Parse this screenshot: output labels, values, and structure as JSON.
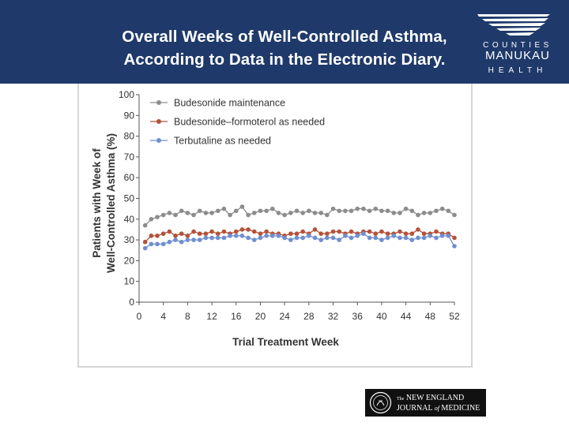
{
  "slide": {
    "title_line1": "Overall Weeks of Well-Controlled Asthma,",
    "title_line2": "According to Data in the Electronic Diary.",
    "colors": {
      "header_bg": "#1f3a6a",
      "text_light": "#ffffff"
    }
  },
  "logo": {
    "line1": "COUNTIES",
    "line2": "MANUKAU",
    "line3": "HEALTH"
  },
  "journal": {
    "the": "The",
    "name_line1": "NEW ENGLAND",
    "journal_word": "JOURNAL",
    "of_word": "of",
    "medicine_word": "MEDICINE"
  },
  "chart_data": {
    "type": "line",
    "title": "",
    "xlabel": "Trial Treatment Week",
    "ylabel_line1": "Patients with Week of",
    "ylabel_line2": "Well-Controlled Asthma (%)",
    "xlim": [
      0,
      52
    ],
    "ylim": [
      0,
      100
    ],
    "xticks": [
      0,
      4,
      8,
      12,
      16,
      20,
      24,
      28,
      32,
      36,
      40,
      44,
      48,
      52
    ],
    "yticks": [
      0,
      10,
      20,
      30,
      40,
      50,
      60,
      70,
      80,
      90,
      100
    ],
    "legend_position": "top-left",
    "grid": false,
    "x": [
      1,
      2,
      3,
      4,
      5,
      6,
      7,
      8,
      9,
      10,
      11,
      12,
      13,
      14,
      15,
      16,
      17,
      18,
      19,
      20,
      21,
      22,
      23,
      24,
      25,
      26,
      27,
      28,
      29,
      30,
      31,
      32,
      33,
      34,
      35,
      36,
      37,
      38,
      39,
      40,
      41,
      42,
      43,
      44,
      45,
      46,
      47,
      48,
      49,
      50,
      51,
      52
    ],
    "series": [
      {
        "name": "Budesonide maintenance",
        "color": "#8c8c8c",
        "values": [
          37,
          40,
          41,
          42,
          43,
          42,
          44,
          43,
          42,
          44,
          43,
          43,
          44,
          45,
          42,
          44,
          46,
          42,
          43,
          44,
          44,
          45,
          43,
          42,
          43,
          44,
          43,
          44,
          43,
          43,
          42,
          45,
          44,
          44,
          44,
          45,
          45,
          44,
          45,
          44,
          44,
          43,
          43,
          45,
          44,
          42,
          43,
          43,
          44,
          45,
          44,
          42
        ]
      },
      {
        "name": "Budesonide–formoterol as needed",
        "color": "#b4523a",
        "values": [
          29,
          32,
          32,
          33,
          34,
          32,
          33,
          32,
          34,
          33,
          33,
          34,
          33,
          34,
          33,
          34,
          35,
          35,
          34,
          33,
          34,
          33,
          33,
          32,
          33,
          33,
          34,
          33,
          35,
          33,
          33,
          34,
          34,
          33,
          34,
          33,
          34,
          34,
          33,
          34,
          33,
          33,
          34,
          33,
          33,
          35,
          33,
          33,
          34,
          33,
          33,
          31
        ]
      },
      {
        "name": "Terbutaline as needed",
        "color": "#6f8fd0",
        "values": [
          26,
          28,
          28,
          28,
          29,
          30,
          29,
          30,
          30,
          30,
          31,
          31,
          31,
          31,
          32,
          32,
          32,
          31,
          30,
          31,
          32,
          32,
          32,
          31,
          30,
          31,
          31,
          32,
          31,
          30,
          31,
          31,
          30,
          32,
          31,
          32,
          33,
          31,
          31,
          30,
          31,
          32,
          31,
          31,
          30,
          31,
          31,
          32,
          31,
          32,
          32,
          27
        ]
      }
    ]
  }
}
